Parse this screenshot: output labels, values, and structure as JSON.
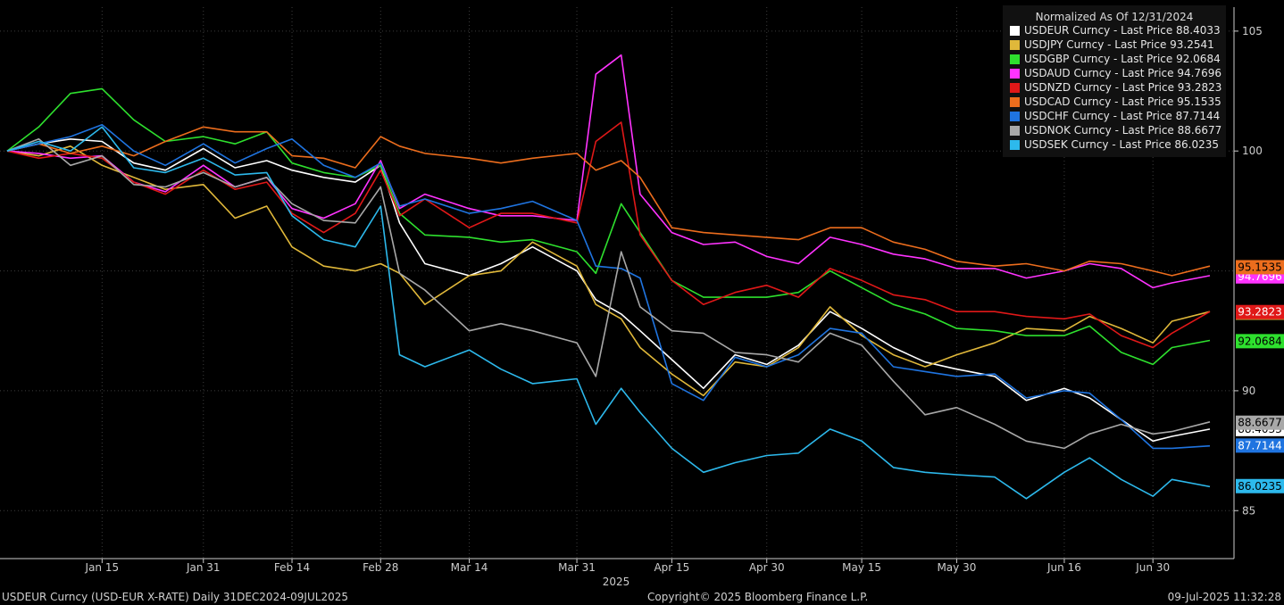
{
  "colors": {
    "background": "#000000",
    "grid": "#3c3c3c",
    "axis": "#cccccc",
    "legend_bg": "#111111"
  },
  "footer": {
    "left": "USDEUR Curncy (USD-EUR X-RATE)  Daily 31DEC2024-09JUL2025",
    "center": "Copyright© 2025 Bloomberg Finance L.P.",
    "right": "09-Jul-2025 11:32:28"
  },
  "chart_data": {
    "type": "line",
    "title": "Normalized As Of 12/31/2024",
    "xlabel": "2025",
    "ylabel": "",
    "ylim": [
      83,
      106
    ],
    "y_ticks": [
      "85",
      "90",
      "100",
      "105"
    ],
    "x_ticks": [
      "Jan 15",
      "Jan 31",
      "Feb 14",
      "Feb 28",
      "Mar 14",
      "Mar 31",
      "Apr 15",
      "Apr 30",
      "May 15",
      "May 30",
      "Jun 16",
      "Jun 30"
    ],
    "x": [
      "12-31",
      "01-05",
      "01-10",
      "01-15",
      "01-20",
      "01-25",
      "01-31",
      "02-05",
      "02-10",
      "02-14",
      "02-19",
      "02-24",
      "02-28",
      "03-03",
      "03-07",
      "03-14",
      "03-19",
      "03-24",
      "03-31",
      "04-03",
      "04-07",
      "04-10",
      "04-15",
      "04-20",
      "04-25",
      "04-30",
      "05-05",
      "05-10",
      "05-15",
      "05-20",
      "05-25",
      "05-30",
      "06-05",
      "06-10",
      "06-16",
      "06-20",
      "06-25",
      "06-30",
      "07-03",
      "07-09"
    ],
    "series": [
      {
        "name": "USDEUR Curncy - Last Price",
        "last": "88.4033",
        "color": "#ffffff",
        "values": [
          100,
          100.3,
          100.5,
          100.4,
          99.5,
          99.2,
          100.1,
          99.3,
          99.6,
          99.2,
          98.9,
          98.7,
          99.4,
          97.0,
          95.3,
          94.8,
          95.3,
          96.0,
          95.0,
          93.8,
          93.2,
          92.5,
          91.3,
          90.1,
          91.5,
          91.1,
          91.9,
          93.3,
          92.6,
          91.8,
          91.2,
          90.9,
          90.6,
          89.6,
          90.1,
          89.7,
          88.8,
          87.9,
          88.1,
          88.4
        ],
        "label_pos": "left"
      },
      {
        "name": "USDJPY Curncy - Last Price",
        "last": "93.2541",
        "color": "#e0b83a",
        "values": [
          100,
          99.8,
          100.2,
          99.4,
          98.9,
          98.4,
          98.6,
          97.2,
          97.7,
          96.0,
          95.2,
          95.0,
          95.3,
          94.9,
          93.6,
          94.8,
          95.0,
          96.2,
          95.2,
          93.6,
          93.0,
          91.8,
          90.7,
          89.8,
          91.2,
          91.0,
          91.8,
          93.5,
          92.3,
          91.5,
          91.0,
          91.5,
          92.0,
          92.6,
          92.5,
          93.1,
          92.6,
          92.0,
          92.9,
          93.3
        ],
        "label_pos": "left"
      },
      {
        "name": "USDGBP Curncy - Last Price",
        "last": "92.0684",
        "color": "#2ee02e",
        "values": [
          100,
          101.0,
          102.4,
          102.6,
          101.3,
          100.4,
          100.6,
          100.3,
          100.8,
          99.5,
          99.1,
          98.9,
          99.4,
          97.4,
          96.5,
          96.4,
          96.2,
          96.3,
          95.8,
          94.9,
          97.8,
          96.6,
          94.6,
          93.9,
          93.9,
          93.9,
          94.1,
          95.0,
          94.3,
          93.6,
          93.2,
          92.6,
          92.5,
          92.3,
          92.3,
          92.7,
          91.6,
          91.1,
          91.8,
          92.1
        ],
        "label_pos": "left"
      },
      {
        "name": "USDAUD Curncy - Last Price",
        "last": "94.7696",
        "color": "#ff33ff",
        "values": [
          100,
          99.9,
          99.7,
          99.8,
          98.7,
          98.3,
          99.4,
          98.5,
          98.9,
          97.6,
          97.2,
          97.8,
          99.6,
          97.6,
          98.2,
          97.6,
          97.3,
          97.3,
          97.1,
          103.2,
          104.0,
          98.2,
          96.6,
          96.1,
          96.2,
          95.6,
          95.3,
          96.4,
          96.1,
          95.7,
          95.5,
          95.1,
          95.1,
          94.7,
          95.0,
          95.3,
          95.1,
          94.3,
          94.5,
          94.8
        ],
        "label_pos": "left"
      },
      {
        "name": "USDNZD Curncy - Last Price",
        "last": "93.2823",
        "color": "#e01818",
        "values": [
          100,
          99.7,
          99.9,
          99.7,
          98.7,
          98.2,
          99.2,
          98.4,
          98.7,
          97.4,
          96.6,
          97.4,
          99.2,
          97.3,
          98.0,
          96.8,
          97.4,
          97.4,
          97.0,
          100.4,
          101.2,
          96.5,
          94.6,
          93.6,
          94.1,
          94.4,
          93.9,
          95.1,
          94.6,
          94.0,
          93.8,
          93.3,
          93.3,
          93.1,
          93.0,
          93.2,
          92.3,
          91.8,
          92.4,
          93.3
        ],
        "label_pos": "left"
      },
      {
        "name": "USDCAD Curncy - Last Price",
        "last": "95.1535",
        "color": "#ec6d1d",
        "values": [
          100,
          100.3,
          99.9,
          100.2,
          99.8,
          100.4,
          101.0,
          100.8,
          100.8,
          99.8,
          99.7,
          99.3,
          100.6,
          100.2,
          99.9,
          99.7,
          99.5,
          99.7,
          99.9,
          99.2,
          99.6,
          98.9,
          96.8,
          96.6,
          96.5,
          96.4,
          96.3,
          96.8,
          96.8,
          96.2,
          95.9,
          95.4,
          95.2,
          95.3,
          95.0,
          95.4,
          95.3,
          95.0,
          94.8,
          95.2
        ],
        "label_pos": "none"
      },
      {
        "name": "USDCHF Curncy - Last Price",
        "last": "87.7144",
        "color": "#1f74e0",
        "values": [
          100,
          100.3,
          100.6,
          101.1,
          100.0,
          99.4,
          100.3,
          99.5,
          100.1,
          100.5,
          99.4,
          98.9,
          99.5,
          97.7,
          98.0,
          97.4,
          97.6,
          97.9,
          97.1,
          95.2,
          95.1,
          94.7,
          90.3,
          89.6,
          91.4,
          91.0,
          91.5,
          92.6,
          92.4,
          91.0,
          90.8,
          90.6,
          90.7,
          89.7,
          90.0,
          89.9,
          88.8,
          87.6,
          87.6,
          87.7
        ],
        "label_pos": "left"
      },
      {
        "name": "USDNOK Curncy - Last Price",
        "last": "88.6677",
        "color": "#a8a8a8",
        "values": [
          100,
          100.5,
          99.4,
          99.8,
          98.6,
          98.5,
          99.1,
          98.5,
          98.9,
          97.8,
          97.1,
          97.0,
          98.5,
          94.9,
          94.2,
          92.5,
          92.8,
          92.5,
          92.0,
          90.6,
          95.8,
          93.5,
          92.5,
          92.4,
          91.6,
          91.5,
          91.2,
          92.4,
          91.9,
          90.4,
          89.0,
          89.3,
          88.6,
          87.9,
          87.6,
          88.2,
          88.6,
          88.2,
          88.3,
          88.7
        ],
        "label_pos": "none"
      },
      {
        "name": "USDSEK Curncy - Last Price",
        "last": "86.0235",
        "color": "#2db9ec",
        "values": [
          100,
          100.4,
          100.0,
          101.0,
          99.3,
          99.1,
          99.7,
          99.0,
          99.1,
          97.3,
          96.3,
          96.0,
          97.7,
          91.5,
          91.0,
          91.7,
          90.9,
          90.3,
          90.5,
          88.6,
          90.1,
          89.1,
          87.6,
          86.6,
          87.0,
          87.3,
          87.4,
          88.4,
          87.9,
          86.8,
          86.6,
          86.5,
          86.4,
          85.5,
          86.6,
          87.2,
          86.3,
          85.6,
          86.3,
          86.0
        ],
        "label_pos": "left"
      }
    ],
    "grid": true,
    "legend_position": "top-right"
  }
}
